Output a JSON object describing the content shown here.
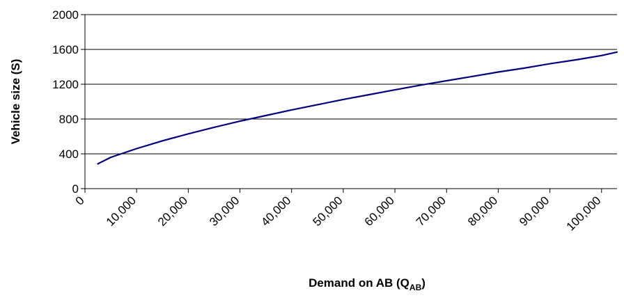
{
  "chart_data": {
    "type": "line",
    "title": "",
    "xlabel": "Demand on AB (Q",
    "xlabel_subscript": "AB",
    "xlabel_suffix": ")",
    "ylabel": "Vehicle size (S)",
    "xlim": [
      0,
      103000
    ],
    "ylim": [
      0,
      2000
    ],
    "x_ticks": [
      0,
      10000,
      20000,
      30000,
      40000,
      50000,
      60000,
      70000,
      80000,
      90000,
      100000
    ],
    "x_tick_labels": [
      "0",
      "10,000",
      "20,000",
      "30,000",
      "40,000",
      "50,000",
      "60,000",
      "70,000",
      "80,000",
      "90,000",
      "100,000"
    ],
    "y_ticks": [
      0,
      400,
      800,
      1200,
      1600,
      2000
    ],
    "y_tick_labels": [
      "0",
      "400",
      "800",
      "1200",
      "1600",
      "2000"
    ],
    "grid": "horizontal",
    "colors": {
      "line": "#000080",
      "axis": "#000000",
      "grid": "#000000"
    },
    "series": [
      {
        "x": [
          2500,
          5000,
          10000,
          15000,
          20000,
          25000,
          30000,
          35000,
          40000,
          45000,
          50000,
          55000,
          60000,
          65000,
          70000,
          75000,
          80000,
          85000,
          90000,
          95000,
          100000,
          103000
        ],
        "values": [
          285,
          360,
          460,
          550,
          630,
          705,
          775,
          840,
          905,
          965,
          1025,
          1080,
          1135,
          1190,
          1240,
          1290,
          1340,
          1385,
          1435,
          1480,
          1530,
          1570
        ]
      }
    ]
  }
}
